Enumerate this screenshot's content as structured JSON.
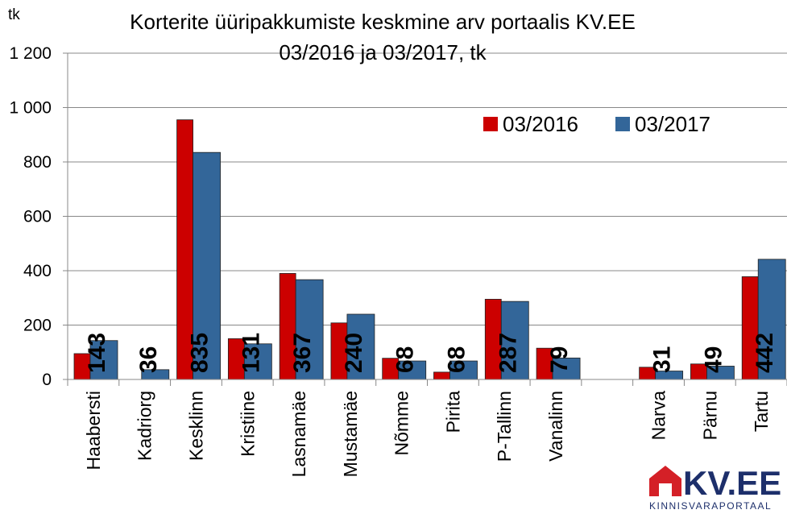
{
  "chart_data": {
    "type": "bar",
    "title_line1": "Korterite üüripakkumiste keskmine arv portaalis KV.EE",
    "title_line2": "03/2016 ja 03/2017, tk",
    "y_unit_label": "tk",
    "ylim": [
      0,
      1200
    ],
    "yticks": [
      0,
      200,
      400,
      600,
      800,
      1000,
      1200
    ],
    "ytick_labels": [
      "0",
      "200",
      "400",
      "600",
      "800",
      "1 000",
      "1 200"
    ],
    "categories": [
      "Haabersti",
      "Kadriorg",
      "Kesklinn",
      "Kristiine",
      "Lasnamäe",
      "Mustamäe",
      "Nõmme",
      "Pirita",
      "P-Tallinn",
      "Vanalinn",
      "",
      "Narva",
      "Pärnu",
      "Tartu"
    ],
    "series": [
      {
        "name": "03/2016",
        "color": "#cc0000",
        "values": [
          95,
          0,
          955,
          150,
          390,
          208,
          78,
          27,
          295,
          115,
          null,
          45,
          57,
          378
        ]
      },
      {
        "name": "03/2017",
        "color": "#336699",
        "values": [
          143,
          36,
          835,
          131,
          367,
          240,
          68,
          68,
          287,
          79,
          null,
          31,
          49,
          442
        ]
      }
    ],
    "data_labels_series": "03/2017",
    "legend_position": "top-right",
    "grid": true
  },
  "logo": {
    "brand": "KV.EE",
    "tagline": "KINNISVARAPORTAAL",
    "brand_color": "#1d2f6b",
    "house_color": "#d42027"
  }
}
